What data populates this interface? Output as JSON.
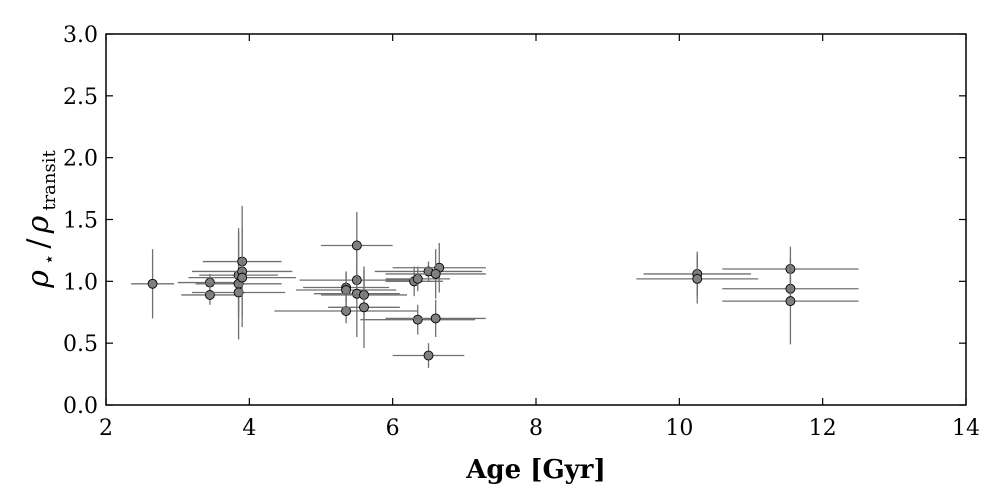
{
  "chart_data": {
    "type": "scatter",
    "title": "",
    "xlabel": "Age [Gyr]",
    "ylabel": {
      "base": "ρ",
      "sub1": "⋆",
      "sep": "/",
      "base2": "ρ",
      "sub2": "transit"
    },
    "xlim": [
      2,
      14
    ],
    "ylim": [
      0.0,
      3.0
    ],
    "xticks": [
      "2",
      "4",
      "6",
      "8",
      "10",
      "12",
      "14"
    ],
    "yticks": [
      "0.0",
      "0.5",
      "1.0",
      "1.5",
      "2.0",
      "2.5",
      "3.0"
    ],
    "grid": false,
    "marker_color": "#808080",
    "errorbar_color": "#707070",
    "points": [
      {
        "x": 2.65,
        "y": 0.98,
        "xerr": 0.3,
        "yerr": 0.28
      },
      {
        "x": 3.45,
        "y": 0.99,
        "xerr": 0.45,
        "yerr": 0.07
      },
      {
        "x": 3.45,
        "y": 0.89,
        "xerr": 0.4,
        "yerr": 0.08
      },
      {
        "x": 3.85,
        "y": 1.05,
        "xerr": 0.55,
        "yerr": 0.35
      },
      {
        "x": 3.85,
        "y": 0.98,
        "xerr": 0.6,
        "yerr": 0.45
      },
      {
        "x": 3.85,
        "y": 0.91,
        "xerr": 0.65,
        "yerr": 0.15
      },
      {
        "x": 3.9,
        "y": 1.16,
        "xerr": 0.55,
        "yerr": 0.45
      },
      {
        "x": 3.9,
        "y": 1.08,
        "xerr": 0.7,
        "yerr": 0.12
      },
      {
        "x": 3.9,
        "y": 1.03,
        "xerr": 0.75,
        "yerr": 0.4
      },
      {
        "x": 5.35,
        "y": 0.95,
        "xerr": 0.6,
        "yerr": 0.12
      },
      {
        "x": 5.35,
        "y": 0.93,
        "xerr": 0.7,
        "yerr": 0.15
      },
      {
        "x": 5.35,
        "y": 0.76,
        "xerr": 1.0,
        "yerr": 0.1
      },
      {
        "x": 5.5,
        "y": 1.29,
        "xerr": 0.5,
        "yerr": 0.27
      },
      {
        "x": 5.5,
        "y": 1.01,
        "xerr": 0.8,
        "yerr": 0.1
      },
      {
        "x": 5.5,
        "y": 0.9,
        "xerr": 0.6,
        "yerr": 0.35
      },
      {
        "x": 5.6,
        "y": 0.89,
        "xerr": 0.6,
        "yerr": 0.2
      },
      {
        "x": 5.6,
        "y": 0.79,
        "xerr": 0.5,
        "yerr": 0.33
      },
      {
        "x": 6.3,
        "y": 1.0,
        "xerr": 0.4,
        "yerr": 0.12
      },
      {
        "x": 6.35,
        "y": 1.02,
        "xerr": 0.45,
        "yerr": 0.1
      },
      {
        "x": 6.35,
        "y": 0.69,
        "xerr": 0.8,
        "yerr": 0.12
      },
      {
        "x": 6.5,
        "y": 1.08,
        "xerr": 0.75,
        "yerr": 0.08
      },
      {
        "x": 6.5,
        "y": 0.4,
        "xerr": 0.5,
        "yerr": 0.1
      },
      {
        "x": 6.65,
        "y": 1.11,
        "xerr": 0.65,
        "yerr": 0.2
      },
      {
        "x": 6.6,
        "y": 1.06,
        "xerr": 0.7,
        "yerr": 0.2
      },
      {
        "x": 6.6,
        "y": 0.7,
        "xerr": 0.7,
        "yerr": 0.15
      },
      {
        "x": 10.25,
        "y": 1.06,
        "xerr": 0.75,
        "yerr": 0.18
      },
      {
        "x": 10.25,
        "y": 1.02,
        "xerr": 0.85,
        "yerr": 0.2
      },
      {
        "x": 11.55,
        "y": 1.1,
        "xerr": 0.95,
        "yerr": 0.18
      },
      {
        "x": 11.55,
        "y": 0.94,
        "xerr": 0.95,
        "yerr": 0.1
      },
      {
        "x": 11.55,
        "y": 0.84,
        "xerr": 0.95,
        "yerr": 0.35
      }
    ]
  }
}
